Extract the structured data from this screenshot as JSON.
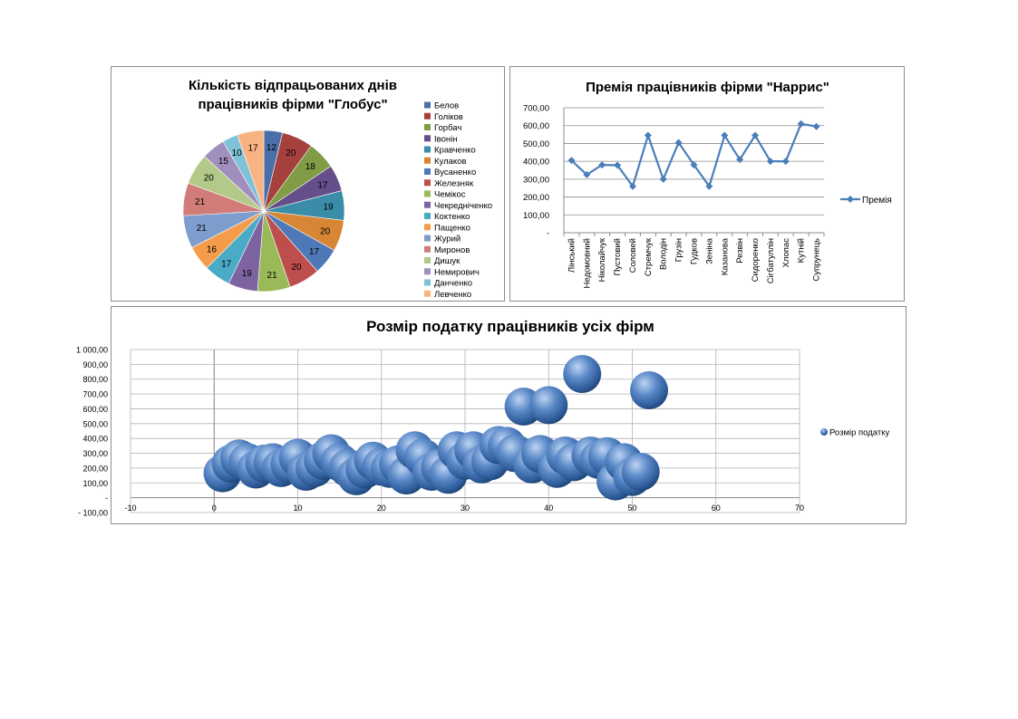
{
  "pie_chart": {
    "title": "Кількість відпрацьованих днів працівників фірми \"Глобус\""
  },
  "line_chart": {
    "title": "Премія працівників фірми \"Наррис\""
  },
  "bubble_chart": {
    "title": "Розмір податку працівників усіх фірм"
  },
  "chart_data": [
    {
      "type": "pie",
      "title": "Кількість відпрацьованих днів працівників фірми \"Глобус\"",
      "legend_position": "right",
      "categories": [
        "Белов",
        "Голіков",
        "Горбач",
        "Івонін",
        "Кравченко",
        "Кулаков",
        "Вусаненко",
        "Железняк",
        "Чемікос",
        "Чекредніченко",
        "Коктенко",
        "Пащенко",
        "Журий",
        "Миронов",
        "Дишук",
        "Немирович",
        "Данченко",
        "Левченко"
      ],
      "values": [
        12,
        20,
        18,
        17,
        19,
        20,
        17,
        20,
        21,
        19,
        17,
        16,
        21,
        21,
        20,
        15,
        10,
        17
      ],
      "colors": [
        "#4a6fa8",
        "#a6403d",
        "#809c45",
        "#654e89",
        "#3a8da8",
        "#d68635",
        "#4e78b8",
        "#be4e4b",
        "#9aba5a",
        "#7d64a0",
        "#4aabc6",
        "#f59c4b",
        "#7f9dcc",
        "#d27c7a",
        "#b3c989",
        "#a08ebd",
        "#7fc1d6",
        "#f9b382"
      ]
    },
    {
      "type": "line",
      "title": "Премія працівників фірми \"Наррис\"",
      "categories": [
        "Лінський",
        "Недомовний",
        "Ніколайчук",
        "Пустовий",
        "Соловей",
        "Стремчук",
        "Володін",
        "Грузін",
        "Гудков",
        "Зеніна",
        "Казанова",
        "Резвін",
        "Сидоренко",
        "Сігбатуллін",
        "Хлопас",
        "Кутній",
        "Супрунець"
      ],
      "series": [
        {
          "name": "Премія",
          "values": [
            405,
            325,
            380,
            378,
            260,
            545,
            300,
            505,
            380,
            260,
            545,
            410,
            545,
            400,
            400,
            610,
            595
          ]
        }
      ],
      "yticks": [
        "700,00",
        "600,00",
        "500,00",
        "400,00",
        "300,00",
        "200,00",
        "100,00",
        "-"
      ],
      "ylim": [
        0,
        700
      ],
      "grid": true,
      "legend_position": "right",
      "color": "#4a7ebb"
    },
    {
      "type": "scatter",
      "subtype": "bubble",
      "title": "Розмір податку працівників усіх фірм",
      "series": [
        {
          "name": "Розмір податку",
          "x": [
            1,
            2,
            3,
            4,
            5,
            6,
            7,
            8,
            9,
            10,
            11,
            12,
            13,
            14,
            15,
            16,
            17,
            18,
            19,
            20,
            21,
            22,
            23,
            24,
            25,
            26,
            27,
            28,
            29,
            30,
            31,
            32,
            33,
            34,
            35,
            36,
            37,
            38,
            39,
            40,
            41,
            42,
            43,
            44,
            45,
            46,
            47,
            48,
            49,
            50,
            51,
            52
          ],
          "y": [
            165,
            230,
            265,
            240,
            190,
            230,
            240,
            200,
            225,
            270,
            175,
            200,
            250,
            300,
            240,
            200,
            145,
            190,
            250,
            210,
            195,
            225,
            150,
            320,
            270,
            175,
            205,
            155,
            320,
            250,
            320,
            225,
            245,
            355,
            350,
            300,
            615,
            225,
            295,
            625,
            195,
            285,
            240,
            835,
            285,
            255,
            280,
            110,
            240,
            140,
            175,
            725
          ]
        }
      ],
      "xticks": [
        "-10",
        "0",
        "10",
        "20",
        "30",
        "40",
        "50",
        "60",
        "70"
      ],
      "yticks": [
        "1 000,00",
        "900,00",
        "800,00",
        "700,00",
        "600,00",
        "500,00",
        "400,00",
        "300,00",
        "200,00",
        "100,00",
        "-",
        "- 100,00"
      ],
      "xlim": [
        -10,
        70
      ],
      "ylim": [
        -100,
        1000
      ],
      "grid": true,
      "legend_position": "right",
      "color": "#4a7ebb"
    }
  ]
}
